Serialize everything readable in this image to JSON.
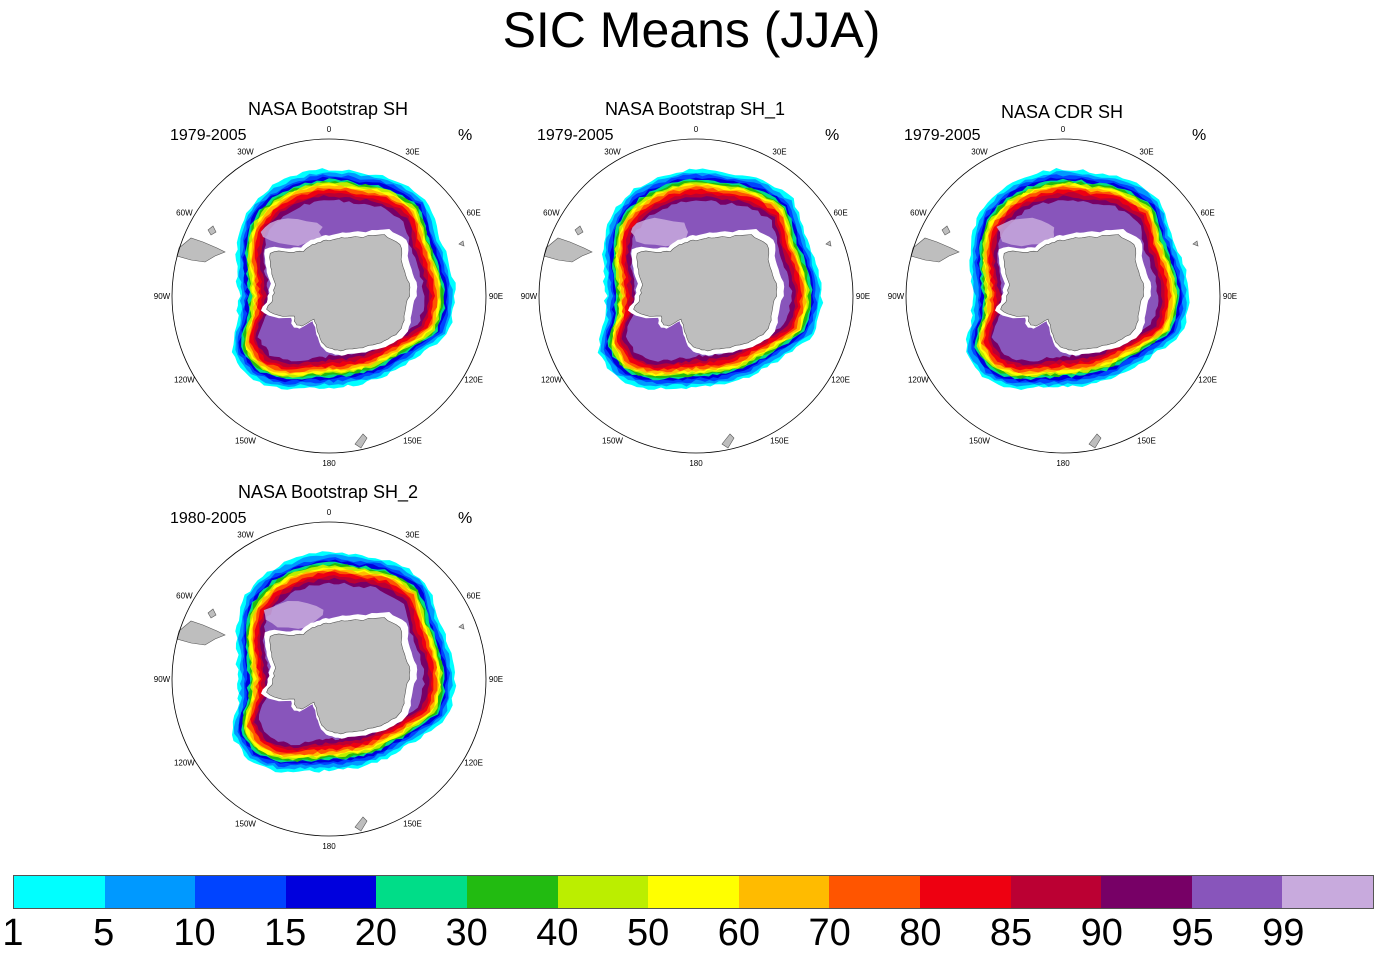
{
  "title": "SIC Means (JJA)",
  "longitude_labels": [
    "0",
    "30E",
    "60E",
    "90E",
    "120E",
    "150E",
    "180",
    "150W",
    "120W",
    "90W",
    "60W",
    "30W"
  ],
  "panels": [
    {
      "title": "NASA Bootstrap SH",
      "period": "1979-2005",
      "unit": "%"
    },
    {
      "title": "NASA Bootstrap SH_1",
      "period": "1979-2005",
      "unit": "%"
    },
    {
      "title": "NASA CDR SH",
      "period": "1979-2005",
      "unit": "%"
    },
    {
      "title": "NASA Bootstrap SH_2",
      "period": "1980-2005",
      "unit": "%"
    }
  ],
  "colorbar": {
    "colors": [
      "#00ffff",
      "#0099ff",
      "#0044ff",
      "#0000dd",
      "#00dd88",
      "#22bb11",
      "#bbee00",
      "#ffff00",
      "#ffbb00",
      "#ff5500",
      "#ee0011",
      "#bb0033",
      "#770066",
      "#8855bb",
      "#c8aadd"
    ],
    "labels": [
      "1",
      "5",
      "10",
      "15",
      "20",
      "30",
      "40",
      "50",
      "60",
      "70",
      "80",
      "85",
      "90",
      "95",
      "99"
    ]
  },
  "colors": {
    "land": "#bebebe",
    "open_water": "#ffffff",
    "coast": "#555555"
  }
}
